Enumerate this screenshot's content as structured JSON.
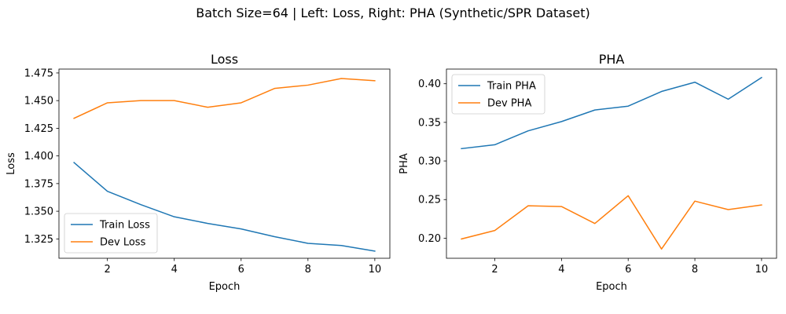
{
  "figure": {
    "suptitle": "Batch Size=64 | Left: Loss, Right: PHA (Synthetic/SPR Dataset)"
  },
  "chart_data": [
    {
      "type": "line",
      "title": "Loss",
      "xlabel": "Epoch",
      "ylabel": "Loss",
      "x": [
        1,
        2,
        3,
        4,
        5,
        6,
        7,
        8,
        9,
        10
      ],
      "xlim": [
        0.55,
        10.45
      ],
      "ylim": [
        1.3075,
        1.4785
      ],
      "xticks": [
        2,
        4,
        6,
        8,
        10
      ],
      "yticks": [
        1.325,
        1.35,
        1.375,
        1.4,
        1.425,
        1.45,
        1.475
      ],
      "ytick_labels": [
        "1.325",
        "1.350",
        "1.375",
        "1.400",
        "1.425",
        "1.450",
        "1.475"
      ],
      "legend_position": "lower-left",
      "grid": false,
      "series": [
        {
          "name": "Train Loss",
          "color": "#1f77b4",
          "values": [
            1.394,
            1.368,
            1.356,
            1.345,
            1.339,
            1.334,
            1.327,
            1.321,
            1.319,
            1.314
          ]
        },
        {
          "name": "Dev Loss",
          "color": "#ff7f0e",
          "values": [
            1.434,
            1.448,
            1.45,
            1.45,
            1.444,
            1.448,
            1.461,
            1.464,
            1.47,
            1.468
          ]
        }
      ]
    },
    {
      "type": "line",
      "title": "PHA",
      "xlabel": "Epoch",
      "ylabel": "PHA",
      "x": [
        1,
        2,
        3,
        4,
        5,
        6,
        7,
        8,
        9,
        10
      ],
      "xlim": [
        0.55,
        10.45
      ],
      "ylim": [
        0.174,
        0.419
      ],
      "xticks": [
        2,
        4,
        6,
        8,
        10
      ],
      "yticks": [
        0.2,
        0.25,
        0.3,
        0.35,
        0.4
      ],
      "ytick_labels": [
        "0.20",
        "0.25",
        "0.30",
        "0.35",
        "0.40"
      ],
      "legend_position": "upper-left",
      "grid": false,
      "series": [
        {
          "name": "Train PHA",
          "color": "#1f77b4",
          "values": [
            0.316,
            0.321,
            0.339,
            0.351,
            0.366,
            0.371,
            0.39,
            0.402,
            0.38,
            0.408
          ]
        },
        {
          "name": "Dev PHA",
          "color": "#ff7f0e",
          "values": [
            0.199,
            0.21,
            0.242,
            0.241,
            0.219,
            0.255,
            0.186,
            0.248,
            0.237,
            0.243
          ]
        }
      ]
    }
  ]
}
